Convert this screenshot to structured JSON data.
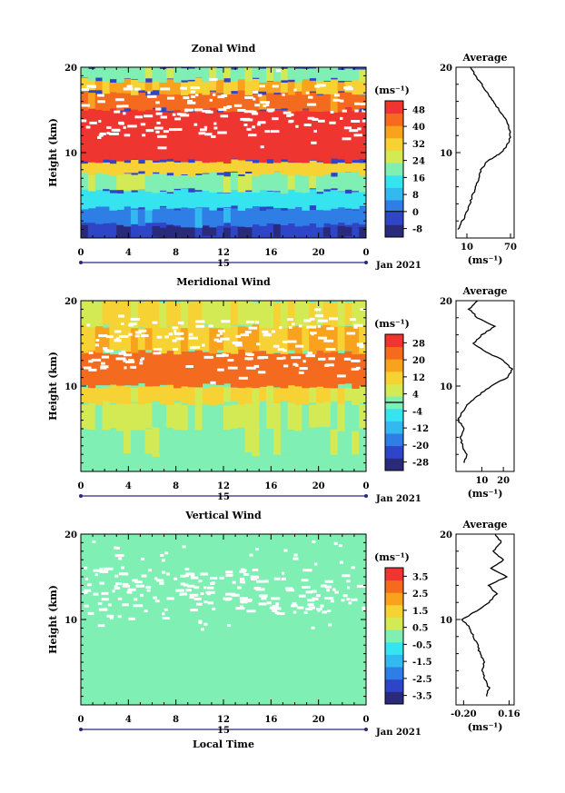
{
  "chart_data": [
    {
      "type": "heatmap",
      "title": "Zonal Wind",
      "ylabel": "Height (km)",
      "xlabel": "",
      "ylim": [
        0,
        20
      ],
      "xlim": [
        0,
        24
      ],
      "x_ticks": [
        "0",
        "4",
        "8",
        "12",
        "16",
        "20",
        "0"
      ],
      "y_ticks": [
        "10",
        "20"
      ],
      "date_labels": {
        "day": "15",
        "month": "Jan 2021"
      },
      "colorbar": {
        "unit": "(ms⁻¹)",
        "ticks": [
          "48",
          "40",
          "32",
          "24",
          "16",
          "8",
          "0",
          "-8"
        ],
        "range": [
          -12,
          52
        ],
        "zero_line": 0
      },
      "profile": {
        "title": "Average",
        "xticks": [
          "10",
          "70"
        ],
        "xlim": [
          -5,
          75
        ],
        "unit": "(ms⁻¹)",
        "points": [
          [
            1,
            -2
          ],
          [
            2,
            4
          ],
          [
            3,
            10
          ],
          [
            4,
            14
          ],
          [
            5,
            18
          ],
          [
            6,
            22
          ],
          [
            7,
            26
          ],
          [
            8,
            30
          ],
          [
            9,
            38
          ],
          [
            9.5,
            48
          ],
          [
            10,
            58
          ],
          [
            11,
            66
          ],
          [
            12,
            70
          ],
          [
            13,
            68
          ],
          [
            14,
            62
          ],
          [
            15,
            54
          ],
          [
            16,
            46
          ],
          [
            17,
            38
          ],
          [
            18,
            30
          ],
          [
            19,
            22
          ],
          [
            20,
            15
          ]
        ]
      },
      "bands": [
        {
          "h0": 0,
          "h1": 1.5,
          "v": -6
        },
        {
          "h0": 1.5,
          "h1": 3.5,
          "v": 4
        },
        {
          "h0": 3.5,
          "h1": 5.5,
          "v": 14
        },
        {
          "h0": 5.5,
          "h1": 7.5,
          "v": 22
        },
        {
          "h0": 7.5,
          "h1": 9,
          "v": 32
        },
        {
          "h0": 9,
          "h1": 15,
          "v": 50
        },
        {
          "h0": 15,
          "h1": 17,
          "v": 42
        },
        {
          "h0": 17,
          "h1": 18.5,
          "v": 34
        },
        {
          "h0": 18.5,
          "h1": 20,
          "v": 22
        }
      ]
    },
    {
      "type": "heatmap",
      "title": "Meridional Wind",
      "ylabel": "Height (km)",
      "xlabel": "",
      "ylim": [
        0,
        20
      ],
      "xlim": [
        0,
        24
      ],
      "x_ticks": [
        "0",
        "4",
        "8",
        "12",
        "16",
        "20",
        "0"
      ],
      "y_ticks": [
        "10",
        "20"
      ],
      "date_labels": {
        "day": "15",
        "month": "Jan 2021"
      },
      "colorbar": {
        "unit": "(ms⁻¹)",
        "ticks": [
          "28",
          "20",
          "12",
          "4",
          "-4",
          "-12",
          "-20",
          "-28"
        ],
        "range": [
          -32,
          32
        ],
        "zero_line": 0
      },
      "profile": {
        "title": "Average",
        "xticks": [
          "10",
          "20"
        ],
        "xlim": [
          -2,
          25
        ],
        "unit": "(ms⁻¹)",
        "points": [
          [
            1,
            2
          ],
          [
            2,
            3
          ],
          [
            3,
            1
          ],
          [
            4,
            0
          ],
          [
            5,
            2
          ],
          [
            6,
            -1
          ],
          [
            7,
            1
          ],
          [
            8,
            4
          ],
          [
            9,
            9
          ],
          [
            10,
            14
          ],
          [
            11,
            22
          ],
          [
            12,
            24
          ],
          [
            13,
            20
          ],
          [
            14,
            12
          ],
          [
            15,
            6
          ],
          [
            16,
            10
          ],
          [
            17,
            16
          ],
          [
            18,
            8
          ],
          [
            19,
            4
          ],
          [
            20,
            8
          ]
        ]
      },
      "bands": [
        {
          "h0": 0,
          "h1": 2,
          "v": 0
        },
        {
          "h0": 2,
          "h1": 5,
          "v": 2
        },
        {
          "h0": 5,
          "h1": 8,
          "v": 4
        },
        {
          "h0": 8,
          "h1": 10,
          "v": 10
        },
        {
          "h0": 10,
          "h1": 14,
          "v": 24
        },
        {
          "h0": 14,
          "h1": 17,
          "v": 14
        },
        {
          "h0": 17,
          "h1": 20,
          "v": 8
        }
      ]
    },
    {
      "type": "heatmap",
      "title": "Vertical Wind",
      "ylabel": "Height (km)",
      "xlabel": "Local Time",
      "ylim": [
        0,
        20
      ],
      "xlim": [
        0,
        24
      ],
      "x_ticks": [
        "0",
        "4",
        "8",
        "12",
        "16",
        "20",
        "0"
      ],
      "y_ticks": [
        "10",
        "20"
      ],
      "date_labels": {
        "day": "15",
        "month": "Jan 2021"
      },
      "colorbar": {
        "unit": "(ms⁻¹)",
        "ticks": [
          "3.5",
          "2.5",
          "1.5",
          "0.5",
          "-0.5",
          "-1.5",
          "-2.5",
          "-3.5"
        ],
        "range": [
          -4,
          4
        ],
        "zero_line": null
      },
      "profile": {
        "title": "Average",
        "xticks": [
          "-0.20",
          "0.16"
        ],
        "xlim": [
          -0.26,
          0.2
        ],
        "unit": "(ms⁻¹)",
        "points": [
          [
            1,
            -0.02
          ],
          [
            2,
            0.0
          ],
          [
            3,
            -0.03
          ],
          [
            4,
            -0.05
          ],
          [
            5,
            -0.04
          ],
          [
            6,
            -0.07
          ],
          [
            7,
            -0.09
          ],
          [
            8,
            -0.12
          ],
          [
            9,
            -0.15
          ],
          [
            10,
            -0.21
          ],
          [
            11,
            -0.1
          ],
          [
            12,
            0.0
          ],
          [
            13,
            0.06
          ],
          [
            14,
            0.0
          ],
          [
            15,
            0.14
          ],
          [
            16,
            0.02
          ],
          [
            17,
            0.12
          ],
          [
            18,
            0.03
          ],
          [
            19,
            0.1
          ],
          [
            20,
            0.05
          ]
        ]
      },
      "bands": [
        {
          "h0": 0,
          "h1": 20,
          "v": -0.1
        }
      ]
    }
  ]
}
